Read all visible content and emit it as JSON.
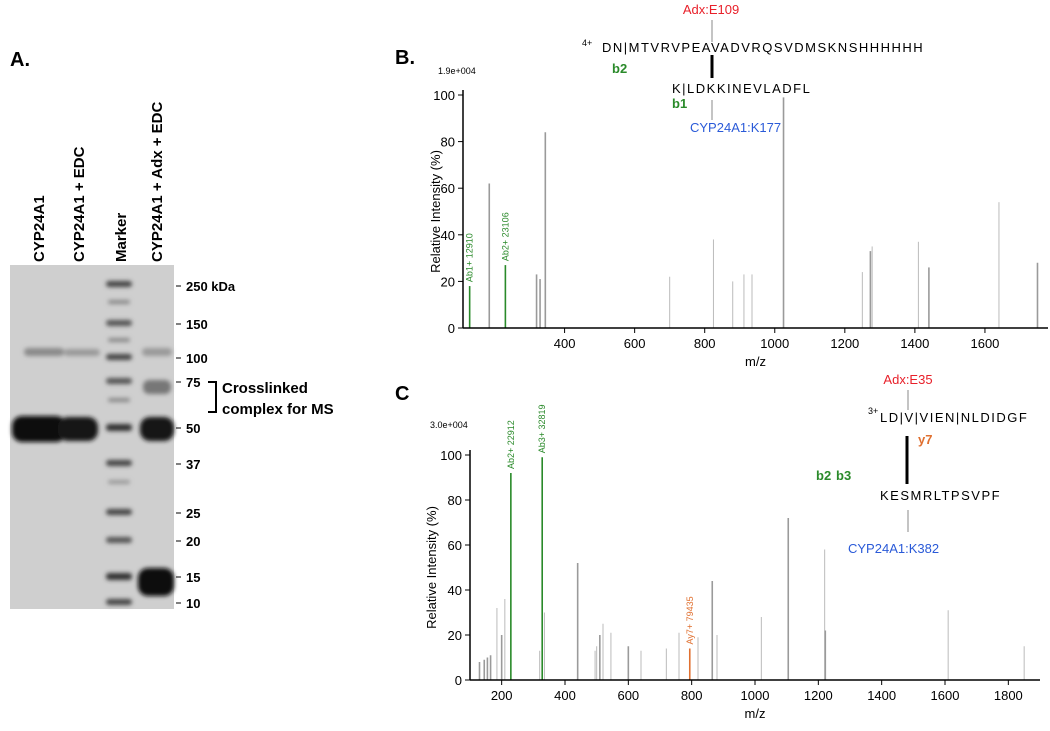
{
  "gel": {
    "panel": "A.",
    "lanes": [
      "CYP24A1",
      "CYP24A1 + EDC",
      "Marker",
      "CYP24A1 + Adx + EDC"
    ],
    "markers": [
      "250 kDa",
      "150",
      "100",
      "75",
      "50",
      "37",
      "25",
      "20",
      "15",
      "10"
    ],
    "annotation": [
      "Crosslinked",
      "complex for MS"
    ]
  },
  "chart_data": [
    {
      "type": "spectrum",
      "panel": "B.",
      "scale_label": "1.9e+004",
      "xlabel": "m/z",
      "ylabel": "Relative  Intensity (%)",
      "x": [
        129,
        185,
        231,
        320,
        330,
        345,
        700,
        825,
        880,
        912,
        935,
        1025,
        1250,
        1273,
        1278,
        1410,
        1440,
        1640,
        1750
      ],
      "values": [
        18,
        62,
        27,
        23,
        21,
        84,
        22,
        38,
        20,
        23,
        23,
        99,
        24,
        33,
        35,
        37,
        26,
        54,
        28
      ],
      "colors": [
        "#2a8a2a",
        "#9a9a9a",
        "#2a8a2a",
        "#9a9a9a",
        "#9a9a9a",
        "#9a9a9a",
        "#bbbbbb",
        "#bbbbbb",
        "#bbbbbb",
        "#bbbbbb",
        "#bbbbbb",
        "#9a9a9a",
        "#bbbbbb",
        "#9a9a9a",
        "#bbbbbb",
        "#bbbbbb",
        "#9a9a9a",
        "#bbbbbb",
        "#9a9a9a"
      ],
      "peak_labels": [
        "Ab1+ 12910",
        null,
        "Ab2+ 23106",
        null,
        null,
        null,
        null,
        null,
        null,
        null,
        null,
        null,
        null,
        null,
        null,
        null,
        null,
        null,
        null
      ],
      "xlim": [
        110,
        1780
      ],
      "ylim": [
        0,
        100
      ],
      "xticks": [
        400,
        600,
        800,
        1000,
        1200,
        1400,
        1600
      ],
      "yticks": [
        0,
        20,
        40,
        60,
        80,
        100
      ],
      "peptide": {
        "charge": "4+",
        "alpha": "DN|MTVRVPEAVADVRQSVDMSKNSHHHHHH",
        "beta": "K|LDKKINEVLADFL",
        "site_top": "Adx:E109",
        "site_bottom": "CYP24A1:K177",
        "ions": [
          "b2",
          "b1"
        ]
      }
    },
    {
      "type": "spectrum",
      "panel": "C",
      "scale_label": "3.0e+004",
      "xlabel": "m/z",
      "ylabel": "Relative  Intensity (%)",
      "x": [
        130,
        145,
        155,
        165,
        185,
        200,
        210,
        229,
        320,
        328,
        335,
        440,
        495,
        500,
        510,
        520,
        545,
        600,
        640,
        720,
        760,
        794,
        820,
        865,
        880,
        1020,
        1105,
        1220,
        1222,
        1610,
        1850
      ],
      "values": [
        8,
        9,
        10,
        11,
        32,
        20,
        36,
        92,
        13,
        99,
        30,
        52,
        13,
        15,
        20,
        25,
        21,
        15,
        13,
        14,
        21,
        14,
        19,
        44,
        20,
        28,
        72,
        58,
        22,
        31,
        15
      ],
      "colors": [
        "#9a9a9a",
        "#9a9a9a",
        "#9a9a9a",
        "#9a9a9a",
        "#bbbbbb",
        "#9a9a9a",
        "#bbbbbb",
        "#2a8a2a",
        "#bbbbbb",
        "#2a8a2a",
        "#bbbbbb",
        "#9a9a9a",
        "#bbbbbb",
        "#bbbbbb",
        "#9a9a9a",
        "#bbbbbb",
        "#bbbbbb",
        "#9a9a9a",
        "#bbbbbb",
        "#bbbbbb",
        "#bbbbbb",
        "#e07030",
        "#bbbbbb",
        "#9a9a9a",
        "#bbbbbb",
        "#bbbbbb",
        "#9a9a9a",
        "#bbbbbb",
        "#9a9a9a",
        "#bbbbbb",
        "#bbbbbb"
      ],
      "peak_labels": [
        null,
        null,
        null,
        null,
        null,
        null,
        null,
        "Ab2+ 22912",
        null,
        "Ab3+ 32819",
        null,
        null,
        null,
        null,
        null,
        null,
        null,
        null,
        null,
        null,
        null,
        "Ay7+ 79435",
        null,
        null,
        null,
        null,
        null,
        null,
        null,
        null,
        null
      ],
      "xlim": [
        100,
        1900
      ],
      "ylim": [
        0,
        100
      ],
      "xticks": [
        200,
        400,
        600,
        800,
        1000,
        1200,
        1400,
        1600,
        1800
      ],
      "yticks": [
        0,
        20,
        40,
        60,
        80,
        100
      ],
      "peptide": {
        "charge": "3+",
        "alpha": "LD|V|VIEN|NLDIDGF",
        "beta": "KESMRLTPSVPF",
        "site_top": "Adx:E35",
        "site_bottom": "CYP24A1:K382",
        "ions": [
          "b2",
          "b3",
          "y7"
        ]
      }
    }
  ]
}
